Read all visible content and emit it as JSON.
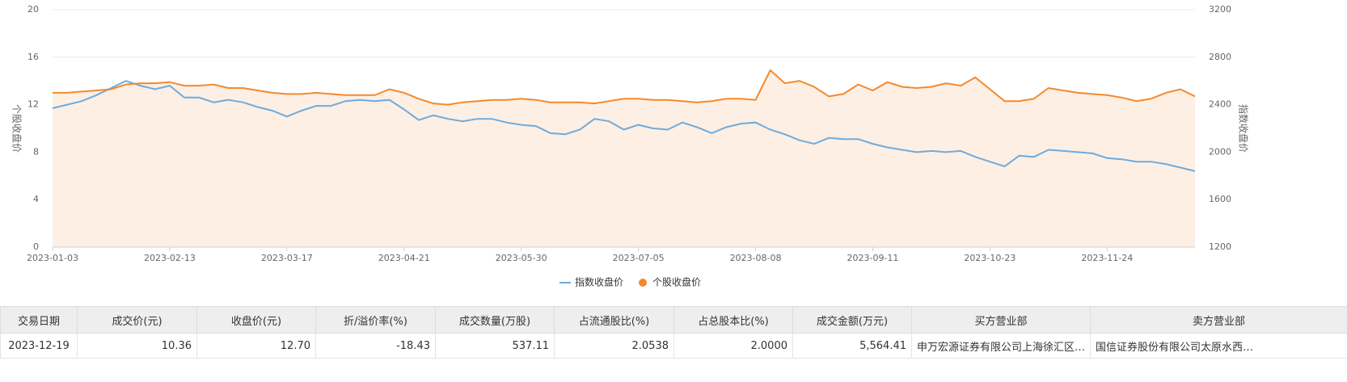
{
  "chart_data": {
    "type": "line",
    "ylabel": "个股收盘价",
    "y2label": "指数收盘价",
    "categories": [
      "2023-01-03",
      null,
      null,
      null,
      null,
      null,
      null,
      null,
      "2023-02-13",
      null,
      null,
      null,
      null,
      null,
      null,
      null,
      "2023-03-17",
      null,
      null,
      null,
      null,
      null,
      null,
      null,
      "2023-04-21",
      null,
      null,
      null,
      null,
      null,
      null,
      null,
      "2023-05-30",
      null,
      null,
      null,
      null,
      null,
      null,
      null,
      "2023-07-05",
      null,
      null,
      null,
      null,
      null,
      null,
      null,
      "2023-08-08",
      null,
      null,
      null,
      null,
      null,
      null,
      null,
      "2023-09-11",
      null,
      null,
      null,
      null,
      null,
      null,
      null,
      "2023-10-23",
      null,
      null,
      null,
      null,
      null,
      null,
      null,
      "2023-11-24",
      null,
      null,
      null,
      null,
      null,
      null
    ],
    "series": [
      {
        "name": "指数收盘价",
        "color": "#6fabdc",
        "axis": "y2",
        "values": [
          2370,
          2400,
          2430,
          2480,
          2540,
          2600,
          2560,
          2530,
          2560,
          2460,
          2460,
          2420,
          2440,
          2420,
          2380,
          2350,
          2300,
          2350,
          2390,
          2390,
          2430,
          2440,
          2430,
          2440,
          2360,
          2270,
          2310,
          2280,
          2260,
          2280,
          2280,
          2250,
          2230,
          2220,
          2160,
          2150,
          2190,
          2280,
          2260,
          2190,
          2230,
          2200,
          2190,
          2250,
          2210,
          2160,
          2210,
          2240,
          2250,
          2190,
          2150,
          2100,
          2070,
          2120,
          2110,
          2110,
          2070,
          2040,
          2020,
          2000,
          2010,
          2000,
          2010,
          1960,
          1920,
          1880,
          1970,
          1960,
          2020,
          2010,
          2000,
          1990,
          1950,
          1940,
          1920,
          1920,
          1900,
          1870,
          1840
        ]
      },
      {
        "name": "个股收盘价",
        "color": "#f5892a",
        "area": "#fdefe4",
        "values": [
          13.0,
          13.0,
          13.1,
          13.2,
          13.3,
          13.7,
          13.8,
          13.8,
          13.9,
          13.6,
          13.6,
          13.7,
          13.4,
          13.4,
          13.2,
          13.0,
          12.9,
          12.9,
          13.0,
          12.9,
          12.8,
          12.8,
          12.8,
          13.3,
          13.0,
          12.5,
          12.1,
          12.0,
          12.2,
          12.3,
          12.4,
          12.4,
          12.5,
          12.4,
          12.2,
          12.2,
          12.2,
          12.1,
          12.3,
          12.5,
          12.5,
          12.4,
          12.4,
          12.3,
          12.2,
          12.3,
          12.5,
          12.5,
          12.4,
          14.9,
          13.8,
          14.0,
          13.5,
          12.7,
          12.9,
          13.7,
          13.2,
          13.9,
          13.5,
          13.4,
          13.5,
          13.8,
          13.6,
          14.3,
          13.3,
          12.3,
          12.3,
          12.5,
          13.4,
          13.2,
          13.0,
          12.9,
          12.8,
          12.6,
          12.3,
          12.5,
          13.0,
          13.3,
          12.7
        ]
      }
    ],
    "ylim": [
      0,
      20
    ],
    "yticks": [
      0,
      4,
      8,
      12,
      16,
      20
    ],
    "y2lim": [
      1200,
      3200
    ],
    "y2ticks": [
      1200,
      1600,
      2000,
      2400,
      2800,
      3200
    ],
    "grid": true
  },
  "table": {
    "columns": [
      "交易日期",
      "成交价(元)",
      "收盘价(元)",
      "折/溢价率(%)",
      "成交数量(万股)",
      "占流通股比(%)",
      "占总股本比(%)",
      "成交金额(万元)",
      "买方营业部",
      "卖方营业部"
    ],
    "rows": [
      [
        "2023-12-19",
        "10.36",
        "12.70",
        "-18.43",
        "537.11",
        "2.0538",
        "2.0000",
        "5,564.41",
        "申万宏源证券有限公司上海徐汇区…",
        "国信证券股份有限公司太原水西…"
      ]
    ]
  }
}
